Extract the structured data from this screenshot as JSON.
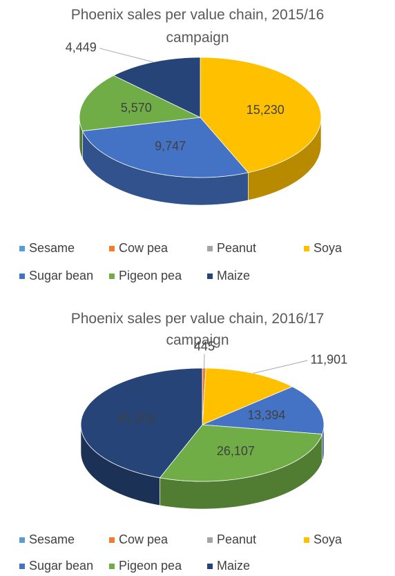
{
  "chart_data": [
    {
      "type": "pie",
      "title": "Phoenix sales per value chain, 2015/16 campaign",
      "categories": [
        "Sesame",
        "Cow pea",
        "Peanut",
        "Soya",
        "Sugar bean",
        "Pigeon pea",
        "Maize"
      ],
      "values": [
        0,
        0,
        0,
        15230,
        9747,
        5570,
        4449
      ],
      "value_labels": [
        null,
        null,
        null,
        "15,230",
        "9,747",
        "5,570",
        "4,449"
      ],
      "colors": [
        "#5b9bd5",
        "#ed7d31",
        "#a5a5a5",
        "#ffc000",
        "#4472c4",
        "#70ad47",
        "#264478"
      ]
    },
    {
      "type": "pie",
      "title": "Phoenix sales per value chain, 2016/17 campaign",
      "categories": [
        "Sesame",
        "Cow pea",
        "Peanut",
        "Soya",
        "Sugar bean",
        "Pigeon pea",
        "Maize"
      ],
      "values": [
        0,
        445,
        0,
        11901,
        13394,
        26107,
        41253
      ],
      "value_labels": [
        null,
        "445",
        null,
        "11,901",
        "13,394",
        "26,107",
        "41,253"
      ],
      "colors": [
        "#5b9bd5",
        "#ed7d31",
        "#a5a5a5",
        "#ffc000",
        "#4472c4",
        "#70ad47",
        "#264478"
      ]
    }
  ]
}
